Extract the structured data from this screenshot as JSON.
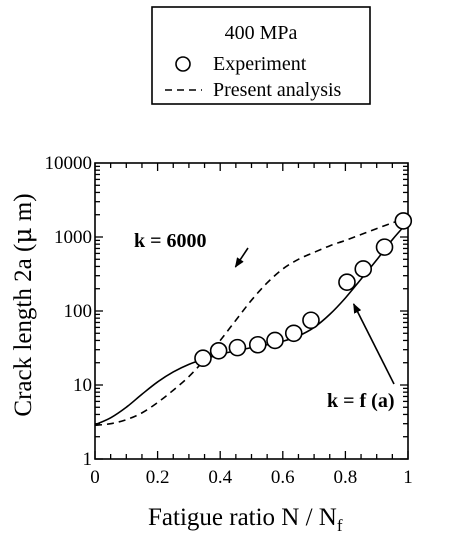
{
  "chart_data": {
    "type": "scatter",
    "title": "",
    "legend": {
      "placement": "top-center",
      "header": "400 MPa",
      "entries": [
        {
          "label": "Experiment",
          "marker": "open-circle"
        },
        {
          "label": "Present analysis",
          "marker": "dashed-line"
        }
      ]
    },
    "xlabel": "Fatigue ratio  N / N",
    "xlabel_subscript": "f",
    "ylabel": "Crack length 2a (",
    "ylabel_mu": "μ",
    "ylabel_tail": " m)",
    "xlim": [
      0,
      1
    ],
    "ylim": [
      1,
      10000
    ],
    "y_scale": "log",
    "x_ticks": [
      {
        "value": 0,
        "label": "0"
      },
      {
        "value": 0.2,
        "label": "0.2"
      },
      {
        "value": 0.4,
        "label": "0.4"
      },
      {
        "value": 0.6,
        "label": "0.6"
      },
      {
        "value": 0.8,
        "label": "0.8"
      },
      {
        "value": 1,
        "label": "1"
      }
    ],
    "y_ticks": [
      {
        "value": 1,
        "label": "1"
      },
      {
        "value": 10,
        "label": "10"
      },
      {
        "value": 100,
        "label": "100"
      },
      {
        "value": 1000,
        "label": "1000"
      },
      {
        "value": 10000,
        "label": "10000"
      }
    ],
    "grid": false,
    "series": [
      {
        "name": "Experiment",
        "kind": "scatter",
        "marker": "open-circle",
        "points": [
          [
            0.345,
            23
          ],
          [
            0.395,
            29
          ],
          [
            0.455,
            32
          ],
          [
            0.52,
            35
          ],
          [
            0.575,
            40
          ],
          [
            0.635,
            50
          ],
          [
            0.69,
            75
          ],
          [
            0.805,
            245
          ],
          [
            0.857,
            370
          ],
          [
            0.925,
            730
          ],
          [
            0.985,
            1650
          ]
        ]
      },
      {
        "name": "k = f (a)",
        "kind": "line",
        "style": "solid",
        "points": [
          [
            0.0,
            2.9
          ],
          [
            0.05,
            3.6
          ],
          [
            0.1,
            5.0
          ],
          [
            0.15,
            7.5
          ],
          [
            0.2,
            11
          ],
          [
            0.25,
            15
          ],
          [
            0.3,
            19
          ],
          [
            0.35,
            22.5
          ],
          [
            0.4,
            26
          ],
          [
            0.45,
            29
          ],
          [
            0.5,
            32
          ],
          [
            0.55,
            35
          ],
          [
            0.6,
            39
          ],
          [
            0.65,
            46
          ],
          [
            0.7,
            60
          ],
          [
            0.75,
            90
          ],
          [
            0.8,
            150
          ],
          [
            0.85,
            270
          ],
          [
            0.9,
            490
          ],
          [
            0.95,
            920
          ],
          [
            1.0,
            1600
          ]
        ]
      },
      {
        "name": "k = 6000",
        "kind": "line",
        "style": "dashed",
        "points": [
          [
            0.0,
            2.85
          ],
          [
            0.05,
            3.0
          ],
          [
            0.1,
            3.4
          ],
          [
            0.15,
            4.2
          ],
          [
            0.2,
            5.8
          ],
          [
            0.25,
            8.5
          ],
          [
            0.3,
            13
          ],
          [
            0.35,
            22
          ],
          [
            0.4,
            40
          ],
          [
            0.45,
            75
          ],
          [
            0.5,
            140
          ],
          [
            0.55,
            240
          ],
          [
            0.6,
            370
          ],
          [
            0.65,
            500
          ],
          [
            0.7,
            620
          ],
          [
            0.75,
            760
          ],
          [
            0.8,
            900
          ],
          [
            0.85,
            1080
          ],
          [
            0.9,
            1300
          ],
          [
            0.95,
            1550
          ],
          [
            1.0,
            1850
          ]
        ]
      }
    ],
    "annotations": [
      {
        "text": "k = 6000",
        "arrow_to": [
          0.455,
          370
        ]
      },
      {
        "text": "k = f (a)",
        "arrow_to": [
          0.82,
          150
        ]
      }
    ]
  }
}
